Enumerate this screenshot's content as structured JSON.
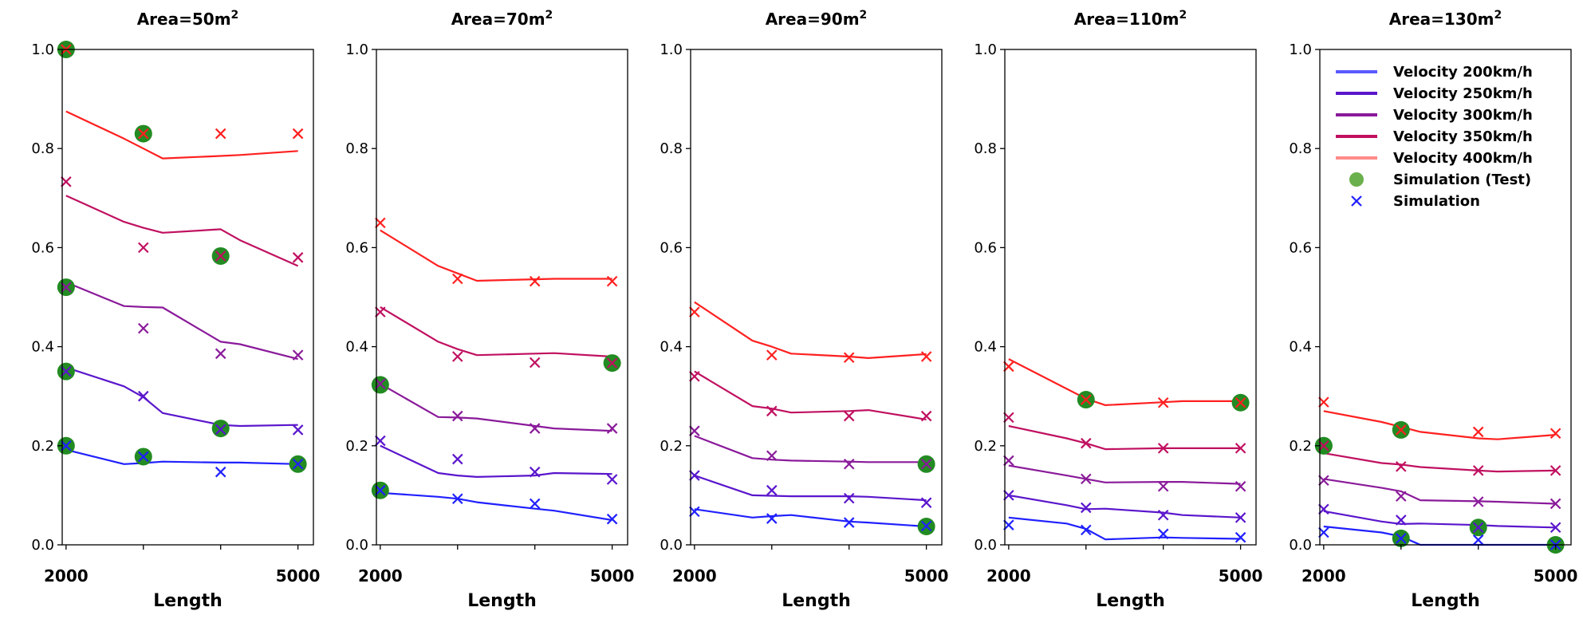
{
  "figure": {
    "xlabel": "Length"
  },
  "colors": {
    "v200": "#2020ff",
    "v250": "#5a16cc",
    "v300": "#8a1a9a",
    "v350": "#c01060",
    "v400": "#ff2020",
    "test_marker": "#228b22",
    "legend_v200": "#5a5aff",
    "legend_v400": "#ff8a8a",
    "legend_test": "#6ab04c"
  },
  "legend": {
    "items": [
      {
        "label": "Velocity 200km/h",
        "kind": "line",
        "color_key": "legend_v200"
      },
      {
        "label": "Velocity 250km/h",
        "kind": "line",
        "color_key": "v250"
      },
      {
        "label": "Velocity 300km/h",
        "kind": "line",
        "color_key": "v300"
      },
      {
        "label": "Velocity 350km/h",
        "kind": "line",
        "color_key": "v350"
      },
      {
        "label": "Velocity 400km/h",
        "kind": "line",
        "color_key": "legend_v400"
      },
      {
        "label": "Simulation  (Test)",
        "kind": "circle",
        "color_key": "legend_test"
      },
      {
        "label": "Simulation",
        "kind": "x",
        "color_key": "v200"
      }
    ]
  },
  "chart_data": [
    {
      "type": "line",
      "title_prefix": "Area=",
      "title_value": "50m",
      "title_sup": "2",
      "xlabel": "Length",
      "xlim": [
        1950,
        5200
      ],
      "ylim": [
        0,
        1.0
      ],
      "x_ticks": [
        2000,
        5000
      ],
      "y_ticks": [
        0.0,
        0.2,
        0.4,
        0.6,
        0.8,
        1.0
      ],
      "show_y_ticklabels": true,
      "line_x": [
        2000,
        2750,
        3000,
        3250,
        4000,
        4250,
        5000
      ],
      "marker_x": [
        2000,
        3000,
        4000,
        5000
      ],
      "series": [
        {
          "name": "Velocity 200km/h",
          "color_key": "v200",
          "line": [
            0.192,
            0.163,
            0.165,
            0.168,
            0.166,
            0.166,
            0.163
          ],
          "markers": [
            0.2,
            0.178,
            0.147,
            0.163
          ]
        },
        {
          "name": "Velocity 250km/h",
          "color_key": "v250",
          "line": [
            0.358,
            0.32,
            0.298,
            0.266,
            0.242,
            0.24,
            0.242
          ],
          "markers": [
            0.35,
            0.3,
            0.233,
            0.232
          ]
        },
        {
          "name": "Velocity 300km/h",
          "color_key": "v300",
          "line": [
            0.53,
            0.482,
            0.48,
            0.479,
            0.41,
            0.405,
            0.375
          ],
          "markers": [
            0.52,
            0.437,
            0.386,
            0.383
          ]
        },
        {
          "name": "Velocity 350km/h",
          "color_key": "v350",
          "line": [
            0.705,
            0.652,
            0.64,
            0.63,
            0.637,
            0.615,
            0.563
          ],
          "markers": [
            0.733,
            0.6,
            0.583,
            0.58
          ]
        },
        {
          "name": "Velocity 400km/h",
          "color_key": "v400",
          "line": [
            0.875,
            0.82,
            0.8,
            0.78,
            0.785,
            0.787,
            0.795
          ],
          "markers": [
            1.0,
            0.83,
            0.83,
            0.83
          ]
        }
      ],
      "test_points": [
        [
          2000,
          1.0
        ],
        [
          3000,
          0.83
        ],
        [
          4000,
          0.583
        ],
        [
          2000,
          0.52
        ],
        [
          2000,
          0.35
        ],
        [
          4000,
          0.235
        ],
        [
          2000,
          0.2
        ],
        [
          3000,
          0.178
        ],
        [
          5000,
          0.163
        ]
      ]
    },
    {
      "type": "line",
      "title_prefix": "Area=",
      "title_value": "70m",
      "title_sup": "2",
      "xlabel": "Length",
      "xlim": [
        1950,
        5200
      ],
      "ylim": [
        0,
        1.0
      ],
      "x_ticks": [
        2000,
        5000
      ],
      "y_ticks": [
        0.0,
        0.2,
        0.4,
        0.6,
        0.8,
        1.0
      ],
      "show_y_ticklabels": true,
      "line_x": [
        2000,
        2750,
        3000,
        3250,
        4000,
        4250,
        5000
      ],
      "marker_x": [
        2000,
        3000,
        4000,
        5000
      ],
      "series": [
        {
          "name": "Velocity 200km/h",
          "color_key": "v200",
          "line": [
            0.105,
            0.097,
            0.093,
            0.086,
            0.073,
            0.069,
            0.05
          ],
          "markers": [
            0.11,
            0.093,
            0.083,
            0.052
          ]
        },
        {
          "name": "Velocity 250km/h",
          "color_key": "v250",
          "line": [
            0.2,
            0.145,
            0.14,
            0.137,
            0.14,
            0.145,
            0.143
          ],
          "markers": [
            0.21,
            0.173,
            0.147,
            0.132
          ]
        },
        {
          "name": "Velocity 300km/h",
          "color_key": "v300",
          "line": [
            0.325,
            0.258,
            0.257,
            0.255,
            0.24,
            0.235,
            0.23
          ],
          "markers": [
            0.325,
            0.26,
            0.235,
            0.235
          ]
        },
        {
          "name": "Velocity 350km/h",
          "color_key": "v350",
          "line": [
            0.48,
            0.41,
            0.395,
            0.383,
            0.386,
            0.387,
            0.38
          ],
          "markers": [
            0.47,
            0.38,
            0.368,
            0.367
          ]
        },
        {
          "name": "Velocity 400km/h",
          "color_key": "v400",
          "line": [
            0.635,
            0.563,
            0.548,
            0.533,
            0.536,
            0.537,
            0.537
          ],
          "markers": [
            0.65,
            0.537,
            0.532,
            0.532
          ]
        }
      ],
      "test_points": [
        [
          2000,
          0.323
        ],
        [
          2000,
          0.11
        ],
        [
          5000,
          0.367
        ]
      ]
    },
    {
      "type": "line",
      "title_prefix": "Area=",
      "title_value": "90m",
      "title_sup": "2",
      "xlabel": "Length",
      "xlim": [
        1950,
        5200
      ],
      "ylim": [
        0,
        1.0
      ],
      "x_ticks": [
        2000,
        5000
      ],
      "y_ticks": [
        0.0,
        0.2,
        0.4,
        0.6,
        0.8,
        1.0
      ],
      "show_y_ticklabels": true,
      "line_x": [
        2000,
        2750,
        3000,
        3250,
        4000,
        4250,
        5000
      ],
      "marker_x": [
        2000,
        3000,
        4000,
        5000
      ],
      "series": [
        {
          "name": "Velocity 200km/h",
          "color_key": "v200",
          "line": [
            0.072,
            0.055,
            0.058,
            0.06,
            0.047,
            0.045,
            0.037
          ],
          "markers": [
            0.067,
            0.053,
            0.045,
            0.038
          ]
        },
        {
          "name": "Velocity 250km/h",
          "color_key": "v250",
          "line": [
            0.14,
            0.1,
            0.099,
            0.098,
            0.098,
            0.097,
            0.09
          ],
          "markers": [
            0.14,
            0.11,
            0.094,
            0.085
          ]
        },
        {
          "name": "Velocity 300km/h",
          "color_key": "v300",
          "line": [
            0.22,
            0.175,
            0.172,
            0.17,
            0.168,
            0.167,
            0.167
          ],
          "markers": [
            0.23,
            0.18,
            0.163,
            0.163
          ]
        },
        {
          "name": "Velocity 350km/h",
          "color_key": "v350",
          "line": [
            0.35,
            0.28,
            0.275,
            0.267,
            0.27,
            0.272,
            0.253
          ],
          "markers": [
            0.34,
            0.27,
            0.26,
            0.26
          ]
        },
        {
          "name": "Velocity 400km/h",
          "color_key": "v400",
          "line": [
            0.49,
            0.412,
            0.4,
            0.386,
            0.38,
            0.377,
            0.385
          ],
          "markers": [
            0.47,
            0.383,
            0.378,
            0.38
          ]
        }
      ],
      "test_points": [
        [
          5000,
          0.163
        ],
        [
          5000,
          0.037
        ]
      ]
    },
    {
      "type": "line",
      "title_prefix": "Area=",
      "title_value": "110m",
      "title_sup": "2",
      "xlabel": "Length",
      "xlim": [
        1950,
        5200
      ],
      "ylim": [
        0,
        1.0
      ],
      "x_ticks": [
        2000,
        5000
      ],
      "y_ticks": [
        0.0,
        0.2,
        0.4,
        0.6,
        0.8,
        1.0
      ],
      "show_y_ticklabels": true,
      "line_x": [
        2000,
        2750,
        3000,
        3250,
        4000,
        4250,
        5000
      ],
      "marker_x": [
        2000,
        3000,
        4000,
        5000
      ],
      "series": [
        {
          "name": "Velocity 200km/h",
          "color_key": "v200",
          "line": [
            0.055,
            0.043,
            0.032,
            0.011,
            0.015,
            0.014,
            0.012
          ],
          "markers": [
            0.04,
            0.03,
            0.022,
            0.015
          ]
        },
        {
          "name": "Velocity 250km/h",
          "color_key": "v250",
          "line": [
            0.1,
            0.08,
            0.072,
            0.073,
            0.065,
            0.06,
            0.055
          ],
          "markers": [
            0.1,
            0.075,
            0.06,
            0.055
          ]
        },
        {
          "name": "Velocity 300km/h",
          "color_key": "v300",
          "line": [
            0.16,
            0.14,
            0.133,
            0.126,
            0.127,
            0.127,
            0.123
          ],
          "markers": [
            0.17,
            0.133,
            0.118,
            0.118
          ]
        },
        {
          "name": "Velocity 350km/h",
          "color_key": "v350",
          "line": [
            0.24,
            0.215,
            0.205,
            0.193,
            0.195,
            0.195,
            0.195
          ],
          "markers": [
            0.257,
            0.205,
            0.195,
            0.195
          ]
        },
        {
          "name": "Velocity 400km/h",
          "color_key": "v400",
          "line": [
            0.375,
            0.315,
            0.295,
            0.282,
            0.288,
            0.29,
            0.29
          ],
          "markers": [
            0.36,
            0.293,
            0.287,
            0.287
          ]
        }
      ],
      "test_points": [
        [
          3000,
          0.293
        ],
        [
          5000,
          0.287
        ]
      ]
    },
    {
      "type": "line",
      "title_prefix": "Area=",
      "title_value": "130m",
      "title_sup": "2",
      "xlabel": "Length",
      "xlim": [
        1950,
        5200
      ],
      "ylim": [
        0,
        1.0
      ],
      "x_ticks": [
        2000,
        5000
      ],
      "y_ticks": [
        0.0,
        0.2,
        0.4,
        0.6,
        0.8,
        1.0
      ],
      "show_y_ticklabels": true,
      "line_x": [
        2000,
        2750,
        3000,
        3250,
        4000,
        4250,
        5000
      ],
      "marker_x": [
        2000,
        3000,
        4000,
        5000
      ],
      "series": [
        {
          "name": "Velocity 200km/h",
          "color_key": "v200",
          "line": [
            0.037,
            0.025,
            0.017,
            0.0,
            0.0,
            0.0,
            0.0
          ],
          "markers": [
            0.025,
            0.013,
            0.01,
            0.0
          ]
        },
        {
          "name": "Velocity 250km/h",
          "color_key": "v250",
          "line": [
            0.068,
            0.047,
            0.042,
            0.043,
            0.04,
            0.038,
            0.035
          ],
          "markers": [
            0.072,
            0.05,
            0.035,
            0.035
          ]
        },
        {
          "name": "Velocity 300km/h",
          "color_key": "v300",
          "line": [
            0.133,
            0.115,
            0.108,
            0.09,
            0.088,
            0.087,
            0.083
          ],
          "markers": [
            0.13,
            0.098,
            0.087,
            0.083
          ]
        },
        {
          "name": "Velocity 350km/h",
          "color_key": "v350",
          "line": [
            0.185,
            0.165,
            0.162,
            0.157,
            0.15,
            0.148,
            0.15
          ],
          "markers": [
            0.2,
            0.158,
            0.15,
            0.15
          ]
        },
        {
          "name": "Velocity 400km/h",
          "color_key": "v400",
          "line": [
            0.27,
            0.248,
            0.238,
            0.228,
            0.215,
            0.213,
            0.222
          ],
          "markers": [
            0.288,
            0.232,
            0.228,
            0.225
          ]
        }
      ],
      "test_points": [
        [
          2000,
          0.2
        ],
        [
          3000,
          0.232
        ],
        [
          2000,
          0.2
        ],
        [
          3000,
          0.013
        ],
        [
          4000,
          0.035
        ],
        [
          5000,
          0.0
        ]
      ]
    }
  ]
}
